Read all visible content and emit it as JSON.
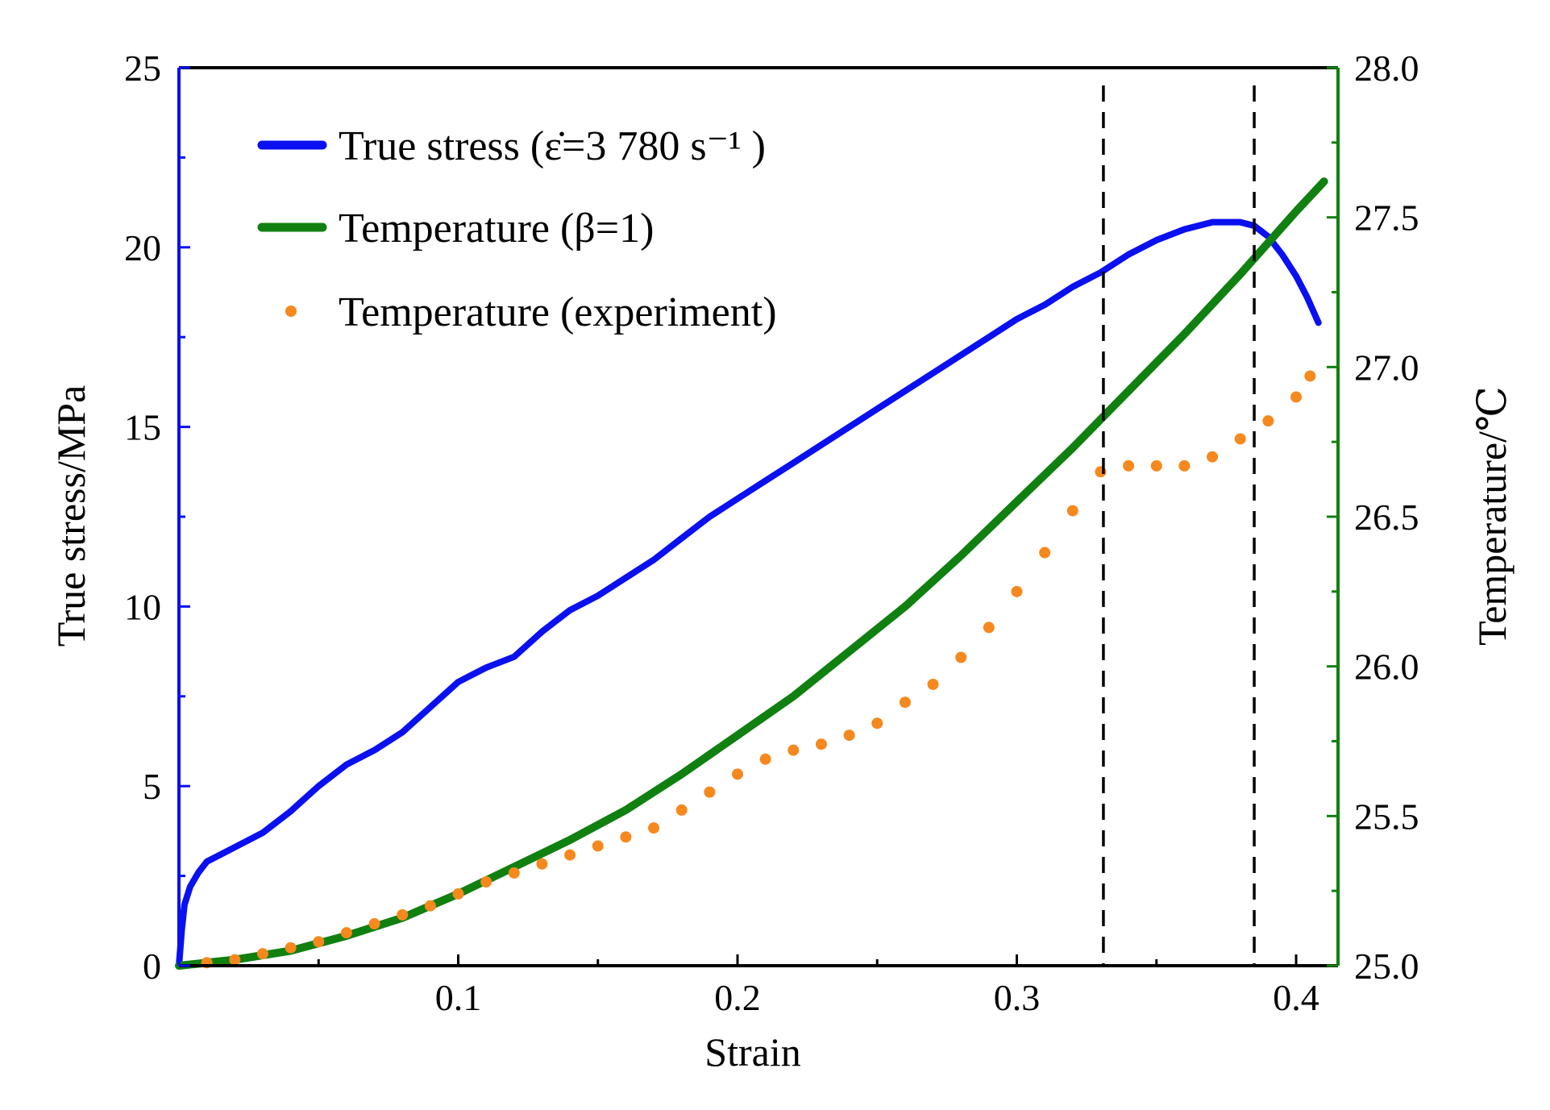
{
  "colors": {
    "stress": "#0a10f0",
    "temp_model": "#108010",
    "temp_exp": "#f5891e",
    "left_axis": "#0a10f0",
    "right_axis": "#108010",
    "frame": "#000000",
    "guide": "#000000"
  },
  "chart_data": {
    "type": "line",
    "xlabel": "Strain",
    "ylabel": "True stress/MPa",
    "y2label": "Temperature/℃",
    "xlim": [
      0,
      0.415
    ],
    "ylim": [
      0,
      25
    ],
    "y2lim": [
      25,
      28
    ],
    "xticks": [
      0.1,
      0.2,
      0.3,
      0.4
    ],
    "xtick_labels": [
      "0.1",
      "0.2",
      "0.3",
      "0.4"
    ],
    "yticks": [
      0,
      5,
      10,
      15,
      20,
      25
    ],
    "ytick_labels": [
      "0",
      "5",
      "10",
      "15",
      "20",
      "25"
    ],
    "y2ticks": [
      25.0,
      25.5,
      26.0,
      26.5,
      27.0,
      27.5,
      28.0
    ],
    "y2tick_labels": [
      "25.0",
      "25.5",
      "26.0",
      "26.5",
      "27.0",
      "27.5",
      "28.0"
    ],
    "legend_position": "top-left",
    "legend": {
      "stress": "True stress (ε̇=3 780 s⁻¹ )",
      "temp_model": "Temperature (β=1)",
      "temp_exp": "Temperature (experiment)"
    },
    "vertical_lines": [
      0.331,
      0.385
    ],
    "series": [
      {
        "key": "stress",
        "axis": "left",
        "style": "line",
        "x": [
          0.0,
          0.001,
          0.002,
          0.004,
          0.007,
          0.01,
          0.015,
          0.02,
          0.03,
          0.04,
          0.05,
          0.06,
          0.07,
          0.08,
          0.09,
          0.1,
          0.105,
          0.11,
          0.12,
          0.13,
          0.14,
          0.15,
          0.16,
          0.17,
          0.18,
          0.19,
          0.2,
          0.21,
          0.22,
          0.23,
          0.24,
          0.25,
          0.26,
          0.27,
          0.28,
          0.29,
          0.3,
          0.31,
          0.32,
          0.33,
          0.34,
          0.35,
          0.36,
          0.37,
          0.375,
          0.38,
          0.385,
          0.39,
          0.395,
          0.4,
          0.404,
          0.408
        ],
        "y": [
          0.0,
          1.0,
          1.7,
          2.2,
          2.6,
          2.9,
          3.1,
          3.3,
          3.7,
          4.3,
          5.0,
          5.6,
          6.0,
          6.5,
          7.2,
          7.9,
          8.1,
          8.3,
          8.6,
          9.3,
          9.9,
          10.3,
          10.8,
          11.3,
          11.9,
          12.5,
          13.0,
          13.5,
          14.0,
          14.5,
          15.0,
          15.5,
          16.0,
          16.5,
          17.0,
          17.5,
          18.0,
          18.4,
          18.9,
          19.3,
          19.8,
          20.2,
          20.5,
          20.7,
          20.7,
          20.7,
          20.6,
          20.3,
          19.8,
          19.2,
          18.6,
          17.9
        ]
      },
      {
        "key": "temp_model",
        "axis": "right",
        "style": "line",
        "x": [
          0.0,
          0.02,
          0.04,
          0.06,
          0.08,
          0.1,
          0.12,
          0.14,
          0.16,
          0.18,
          0.2,
          0.22,
          0.24,
          0.26,
          0.28,
          0.3,
          0.32,
          0.34,
          0.36,
          0.38,
          0.4,
          0.41
        ],
        "y": [
          25.0,
          25.02,
          25.05,
          25.1,
          25.16,
          25.24,
          25.33,
          25.42,
          25.52,
          25.64,
          25.77,
          25.9,
          26.05,
          26.2,
          26.37,
          26.55,
          26.73,
          26.92,
          27.11,
          27.31,
          27.52,
          27.62
        ]
      },
      {
        "key": "temp_exp",
        "axis": "right",
        "style": "dots",
        "x": [
          0.01,
          0.02,
          0.03,
          0.04,
          0.05,
          0.06,
          0.07,
          0.08,
          0.09,
          0.1,
          0.11,
          0.12,
          0.13,
          0.14,
          0.15,
          0.16,
          0.17,
          0.18,
          0.19,
          0.2,
          0.21,
          0.22,
          0.23,
          0.24,
          0.25,
          0.26,
          0.27,
          0.28,
          0.29,
          0.3,
          0.31,
          0.32,
          0.33,
          0.34,
          0.35,
          0.36,
          0.37,
          0.38,
          0.39,
          0.4,
          0.405
        ],
        "y": [
          25.01,
          25.02,
          25.04,
          25.06,
          25.08,
          25.11,
          25.14,
          25.17,
          25.2,
          25.24,
          25.28,
          25.31,
          25.34,
          25.37,
          25.4,
          25.43,
          25.46,
          25.52,
          25.58,
          25.64,
          25.69,
          25.72,
          25.74,
          25.77,
          25.81,
          25.88,
          25.94,
          26.03,
          26.13,
          26.25,
          26.38,
          26.52,
          26.65,
          26.67,
          26.67,
          26.67,
          26.7,
          26.76,
          26.82,
          26.9,
          26.97
        ]
      }
    ]
  }
}
